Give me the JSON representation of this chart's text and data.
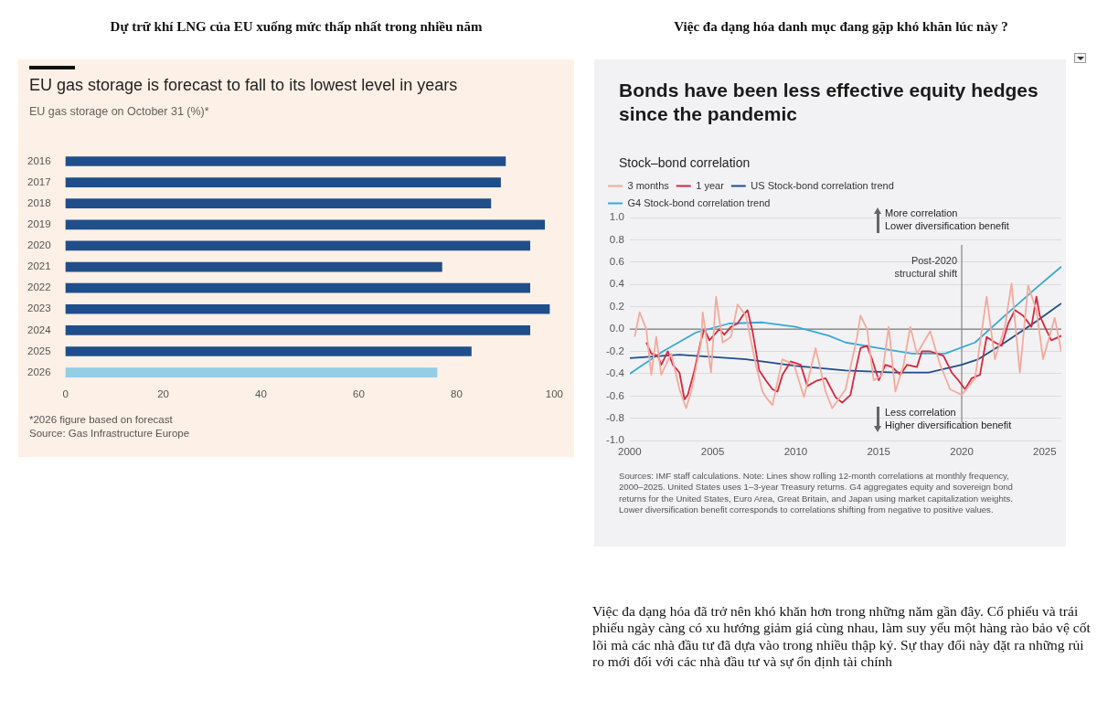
{
  "chart_data": [
    {
      "type": "bar",
      "orientation": "horizontal",
      "title": "EU gas storage is forecast to fall to its lowest level in years",
      "subtitle": "EU gas storage on October 31 (%)*",
      "categories": [
        "2016",
        "2017",
        "2018",
        "2019",
        "2020",
        "2021",
        "2022",
        "2023",
        "2024",
        "2025",
        "2026"
      ],
      "values": [
        90,
        89,
        87,
        98,
        95,
        77,
        95,
        99,
        95,
        83,
        76
      ],
      "colors": [
        "#1f4e8a",
        "#1f4e8a",
        "#1f4e8a",
        "#1f4e8a",
        "#1f4e8a",
        "#1f4e8a",
        "#1f4e8a",
        "#1f4e8a",
        "#1f4e8a",
        "#1f4e8a",
        "#93cde6"
      ],
      "xlim": [
        0,
        100
      ],
      "xticks": [
        0,
        20,
        40,
        60,
        80,
        100
      ],
      "grid": false,
      "legend": false,
      "annotations": [
        "Dự trữ khí LNG của EU xuống mức thấp nhất trong nhiều năm",
        "*2026 figure based on forecast",
        "Source: Gas Infrastructure Europe"
      ]
    },
    {
      "type": "line",
      "title": "Bonds have been less effective equity hedges since the pandemic",
      "subtitle": "Stock–bond correlation",
      "xlim": [
        2000,
        2026
      ],
      "xticks": [
        2000,
        2005,
        2010,
        2015,
        2020,
        2025
      ],
      "ylim": [
        -1,
        1
      ],
      "yticks": [
        {
          "value": -1,
          "label": "-1.0"
        },
        -0.8,
        -0.6,
        -0.4,
        -0.2,
        {
          "value": 0,
          "label": "0.0"
        },
        0.2,
        0.4,
        0.6,
        0.8,
        {
          "value": 1,
          "label": "1.0"
        }
      ],
      "grid": "y",
      "legend": "top left",
      "marker": "none",
      "ref_lines": [
        {
          "axis": "y",
          "value": 0,
          "color": "#7a7a7a"
        },
        {
          "axis": "x",
          "value": 2020,
          "label": "Post-2020\nstructural shift",
          "color": "#8a8a8a"
        }
      ],
      "series": [
        {
          "name": "3 months",
          "color": "#f4aa9c",
          "x": [
            2000.3,
            2000.6,
            2001.0,
            2001.3,
            2001.6,
            2001.9,
            2002.5,
            2003.0,
            2003.4,
            2003.7,
            2004.3,
            2004.4,
            2004.9,
            2005.2,
            2005.6,
            2006.1,
            2006.5,
            2007.0,
            2007.6,
            2008.0,
            2008.2,
            2008.6,
            2009.2,
            2009.9,
            2010.5,
            2011.2,
            2011.8,
            2012.2,
            2013.0,
            2013.7,
            2013.9,
            2014.3,
            2014.7,
            2015.2,
            2015.6,
            2016.0,
            2016.5,
            2016.9,
            2017.3,
            2018.1,
            2018.7,
            2019.3,
            2020.0,
            2020.8,
            2021.5,
            2022.0,
            2022.6,
            2023.0,
            2023.5,
            2024.0,
            2024.5,
            2024.9,
            2025.6,
            2026.0
          ],
          "values": [
            -0.07,
            0.15,
            0,
            -0.41,
            -0.07,
            -0.41,
            -0.22,
            -0.54,
            -0.71,
            -0.56,
            -0.12,
            0.15,
            -0.39,
            0.29,
            -0.12,
            -0.07,
            0.22,
            0.12,
            -0.32,
            -0.56,
            -0.61,
            -0.68,
            -0.27,
            -0.32,
            -0.61,
            -0.17,
            -0.56,
            -0.71,
            -0.54,
            -0.07,
            0.12,
            0,
            -0.46,
            -0.41,
            0.02,
            -0.56,
            -0.32,
            0.02,
            -0.22,
            -0.02,
            -0.32,
            -0.54,
            -0.59,
            -0.44,
            0.29,
            -0.27,
            0.02,
            0.41,
            -0.39,
            0.39,
            0.17,
            -0.27,
            0.1,
            -0.2
          ]
        },
        {
          "name": "1 year",
          "color": "#d7263d",
          "x": [
            2001.0,
            2001.3,
            2001.7,
            2001.9,
            2002.3,
            2002.6,
            2003.0,
            2003.3,
            2003.5,
            2003.9,
            2004.3,
            2004.5,
            2004.8,
            2005.4,
            2005.7,
            2006.1,
            2006.5,
            2006.8,
            2007.1,
            2007.4,
            2007.8,
            2008.2,
            2008.6,
            2008.9,
            2009.2,
            2009.7,
            2010.3,
            2010.7,
            2011.3,
            2011.8,
            2012.4,
            2012.8,
            2013.3,
            2013.5,
            2013.9,
            2014.3,
            2014.6,
            2015.0,
            2015.4,
            2015.8,
            2016.3,
            2016.7,
            2017.3,
            2017.6,
            2018.1,
            2018.9,
            2019.4,
            2019.8,
            2020.2,
            2020.6,
            2021.1,
            2021.5,
            2022.0,
            2022.4,
            2022.8,
            2023.2,
            2023.7,
            2024.2,
            2024.5,
            2024.7,
            2025.0,
            2025.4,
            2026.0
          ],
          "values": [
            -0.12,
            -0.22,
            -0.24,
            -0.32,
            -0.2,
            -0.32,
            -0.39,
            -0.63,
            -0.59,
            -0.37,
            -0.1,
            0,
            -0.1,
            0,
            -0.05,
            0.02,
            0.05,
            0.12,
            0.17,
            -0.02,
            -0.37,
            -0.46,
            -0.54,
            -0.56,
            -0.41,
            -0.29,
            -0.32,
            -0.51,
            -0.46,
            -0.44,
            -0.61,
            -0.66,
            -0.59,
            -0.44,
            -0.17,
            -0.15,
            -0.27,
            -0.46,
            -0.32,
            -0.34,
            -0.41,
            -0.32,
            -0.34,
            -0.2,
            -0.2,
            -0.24,
            -0.39,
            -0.46,
            -0.54,
            -0.44,
            -0.41,
            -0.07,
            -0.12,
            -0.15,
            0.05,
            0.17,
            0.12,
            0.02,
            0.29,
            0.12,
            0.02,
            -0.1,
            -0.06
          ]
        },
        {
          "name": "US Stock-bond correlation trend",
          "color": "#1f4e8a",
          "x": [
            2000,
            2003,
            2007,
            2010,
            2013,
            2016,
            2018,
            2020,
            2021,
            2022.6,
            2024.5,
            2026
          ],
          "values": [
            -0.26,
            -0.23,
            -0.27,
            -0.33,
            -0.37,
            -0.39,
            -0.39,
            -0.32,
            -0.27,
            -0.12,
            0.07,
            0.23
          ]
        },
        {
          "name": "G4 Stock-bond correlation trend",
          "color": "#36a9d9",
          "x": [
            2000,
            2002,
            2004,
            2006,
            2008,
            2010,
            2012,
            2013,
            2015,
            2017,
            2019,
            2020.8,
            2022.6,
            2024.5,
            2026
          ],
          "values": [
            -0.4,
            -0.2,
            -0.03,
            0.05,
            0.06,
            0.02,
            -0.06,
            -0.12,
            -0.17,
            -0.22,
            -0.22,
            -0.12,
            0.12,
            0.37,
            0.56
          ]
        }
      ],
      "annotations": [
        "Việc đa dạng hóa danh mục đang gặp khó khăn lúc này ?",
        "More correlation\nLower diversification benefit",
        "Less correlation\nHigher diversification benefit",
        "Sources: IMF staff calculations. Note: Lines show rolling 12-month correlations at monthly frequency, 2000–2025. United States uses 1–3-year Treasury returns. G4 aggregates equity and sovereign bond returns for the United States, Euro Area, Great Britain, and Japan using market capitalization weights. Lower diversification benefit corresponds to correlations shifting from negative to positive values.",
        "Việc đa dạng hóa đã trở nên khó khăn hơn trong những năm gần đây. Cổ phiếu và trái phiếu ngày càng có xu hướng giảm giá cùng nhau, làm suy yếu một hàng rào bảo vệ cốt lõi mà các nhà đầu tư đã dựa vào trong nhiều thập kỷ. Sự thay đổi này đặt ra những rủi ro mới đối với các nhà đầu tư và sự ổn định tài chính"
      ]
    }
  ]
}
